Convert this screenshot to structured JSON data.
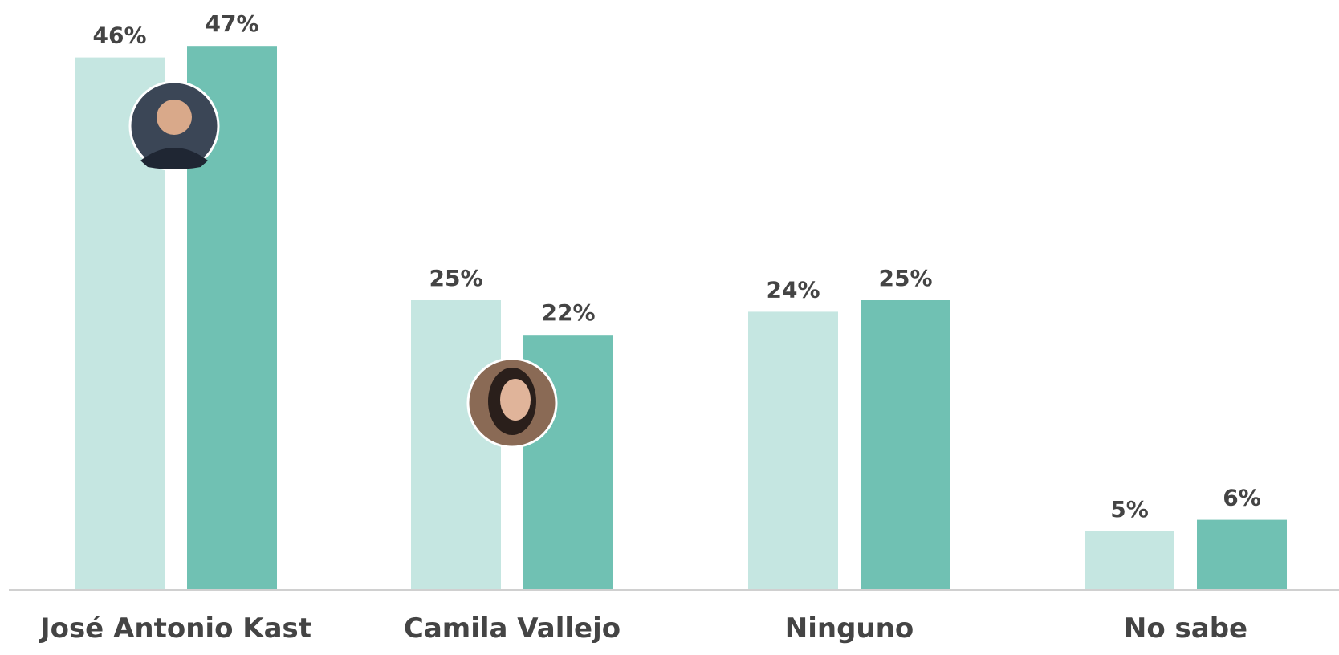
{
  "chart_data": {
    "type": "bar",
    "categories": [
      "José Antonio Kast",
      "Camila Vallejo",
      "Ninguno",
      "No sabe"
    ],
    "series": [
      {
        "color": "#c5e6e1",
        "values": [
          46,
          25,
          24,
          5
        ],
        "value_labels": [
          "46%",
          "25%",
          "24%",
          "5%"
        ]
      },
      {
        "color": "#70c1b3",
        "values": [
          47,
          22,
          25,
          6
        ],
        "value_labels": [
          "47%",
          "22%",
          "25%",
          "6%"
        ]
      }
    ]
  }
}
